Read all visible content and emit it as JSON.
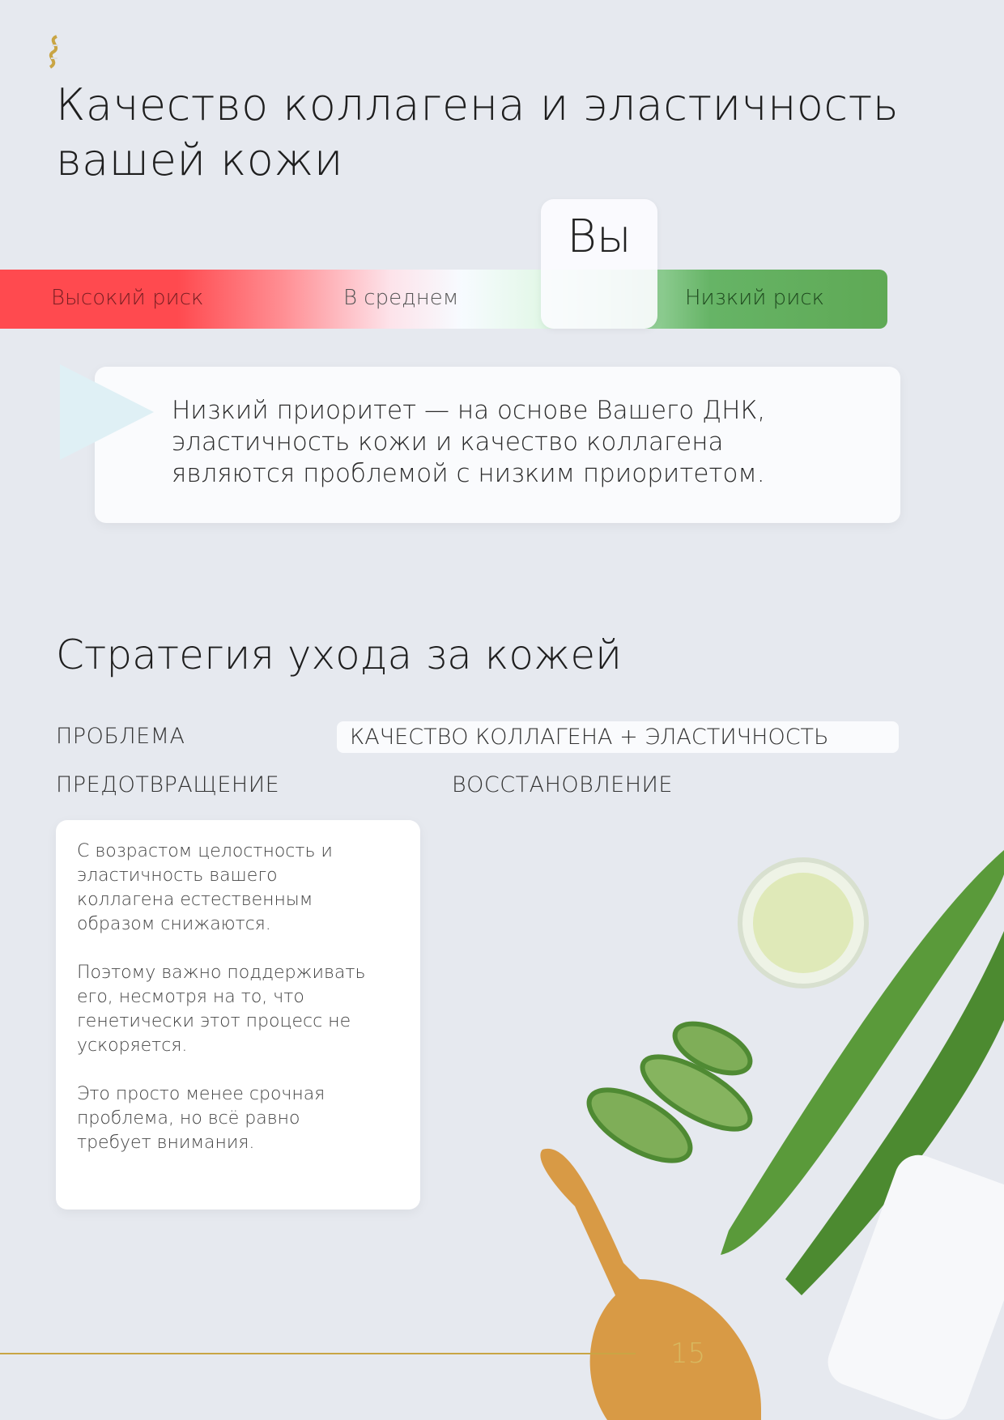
{
  "header": {
    "logo": "dna-logo",
    "title_line1": "Качество коллагена и эластичность",
    "title_line2": "вашей кожи"
  },
  "risk_scale": {
    "labels": [
      "Высокий риск",
      "В среднем",
      "Низкий риск"
    ],
    "marker_label": "Вы",
    "marker_position": "low-risk",
    "colors": {
      "high": "#ff4a4f",
      "average": "#f7fbff",
      "low": "#5fa955"
    }
  },
  "callout": {
    "lines": [
      "Низкий приоритет — на основе Вашего ДНК,",
      "эластичность кожи и качество коллагена",
      "являются проблемой с низким приоритетом."
    ]
  },
  "strategy": {
    "title": "Стратегия ухода за кожей",
    "problem_label": "ПРОБЛЕМА",
    "problem_value": "КАЧЕСТВО КОЛЛАГЕНА + ЭЛАСТИЧНОСТЬ",
    "prevention_label": "ПРЕДОТВРАЩЕНИЕ",
    "recovery_label": "ВОССТАНОВЛЕНИЕ",
    "prevention_paragraphs": [
      "С возрастом целостность и эластичность вашего коллагена естественным образом снижаются.",
      "Поэтому важно поддерживать его, несмотря на то, что генетически этот процесс не ускоряется.",
      "Это просто менее срочная проблема, но всё равно требует внимания."
    ]
  },
  "footer": {
    "page_number": "15",
    "accent": "#c9a544"
  }
}
